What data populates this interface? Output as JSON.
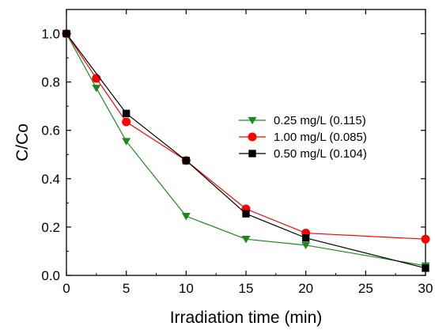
{
  "chart_data": {
    "type": "line",
    "title": "",
    "xlabel": "Irradiation time (min)",
    "ylabel": "C/Co",
    "xlim": [
      0,
      30
    ],
    "ylim": [
      0,
      1.1
    ],
    "xticks": [
      0,
      5,
      10,
      15,
      20,
      25,
      30
    ],
    "yticks": [
      0.0,
      0.2,
      0.4,
      0.6,
      0.8,
      1.0
    ],
    "xtick_labels": [
      "0",
      "5",
      "10",
      "15",
      "20",
      "25",
      "30"
    ],
    "ytick_labels": [
      "0.0",
      "0.2",
      "0.4",
      "0.6",
      "0.8",
      "1.0"
    ],
    "grid": false,
    "legend_position": "center-right",
    "series": [
      {
        "name": "0.25 mg/L (0.115)",
        "color": "#1a8a1a",
        "marker": "triangle-down",
        "x": [
          0,
          2.5,
          5,
          10,
          15,
          20,
          30
        ],
        "y": [
          1.0,
          0.775,
          0.555,
          0.245,
          0.15,
          0.125,
          0.04
        ]
      },
      {
        "name": "1.00 mg/L (0.085)",
        "color": "#ff0000",
        "marker": "circle",
        "x": [
          0,
          2.5,
          5,
          10,
          15,
          20,
          30
        ],
        "y": [
          1.0,
          0.815,
          0.635,
          0.475,
          0.275,
          0.175,
          0.15
        ]
      },
      {
        "name": "0.50 mg/L (0.104)",
        "color": "#000000",
        "marker": "square",
        "x": [
          0,
          5,
          10,
          15,
          20,
          30
        ],
        "y": [
          1.0,
          0.67,
          0.475,
          0.255,
          0.155,
          0.03
        ]
      }
    ]
  }
}
